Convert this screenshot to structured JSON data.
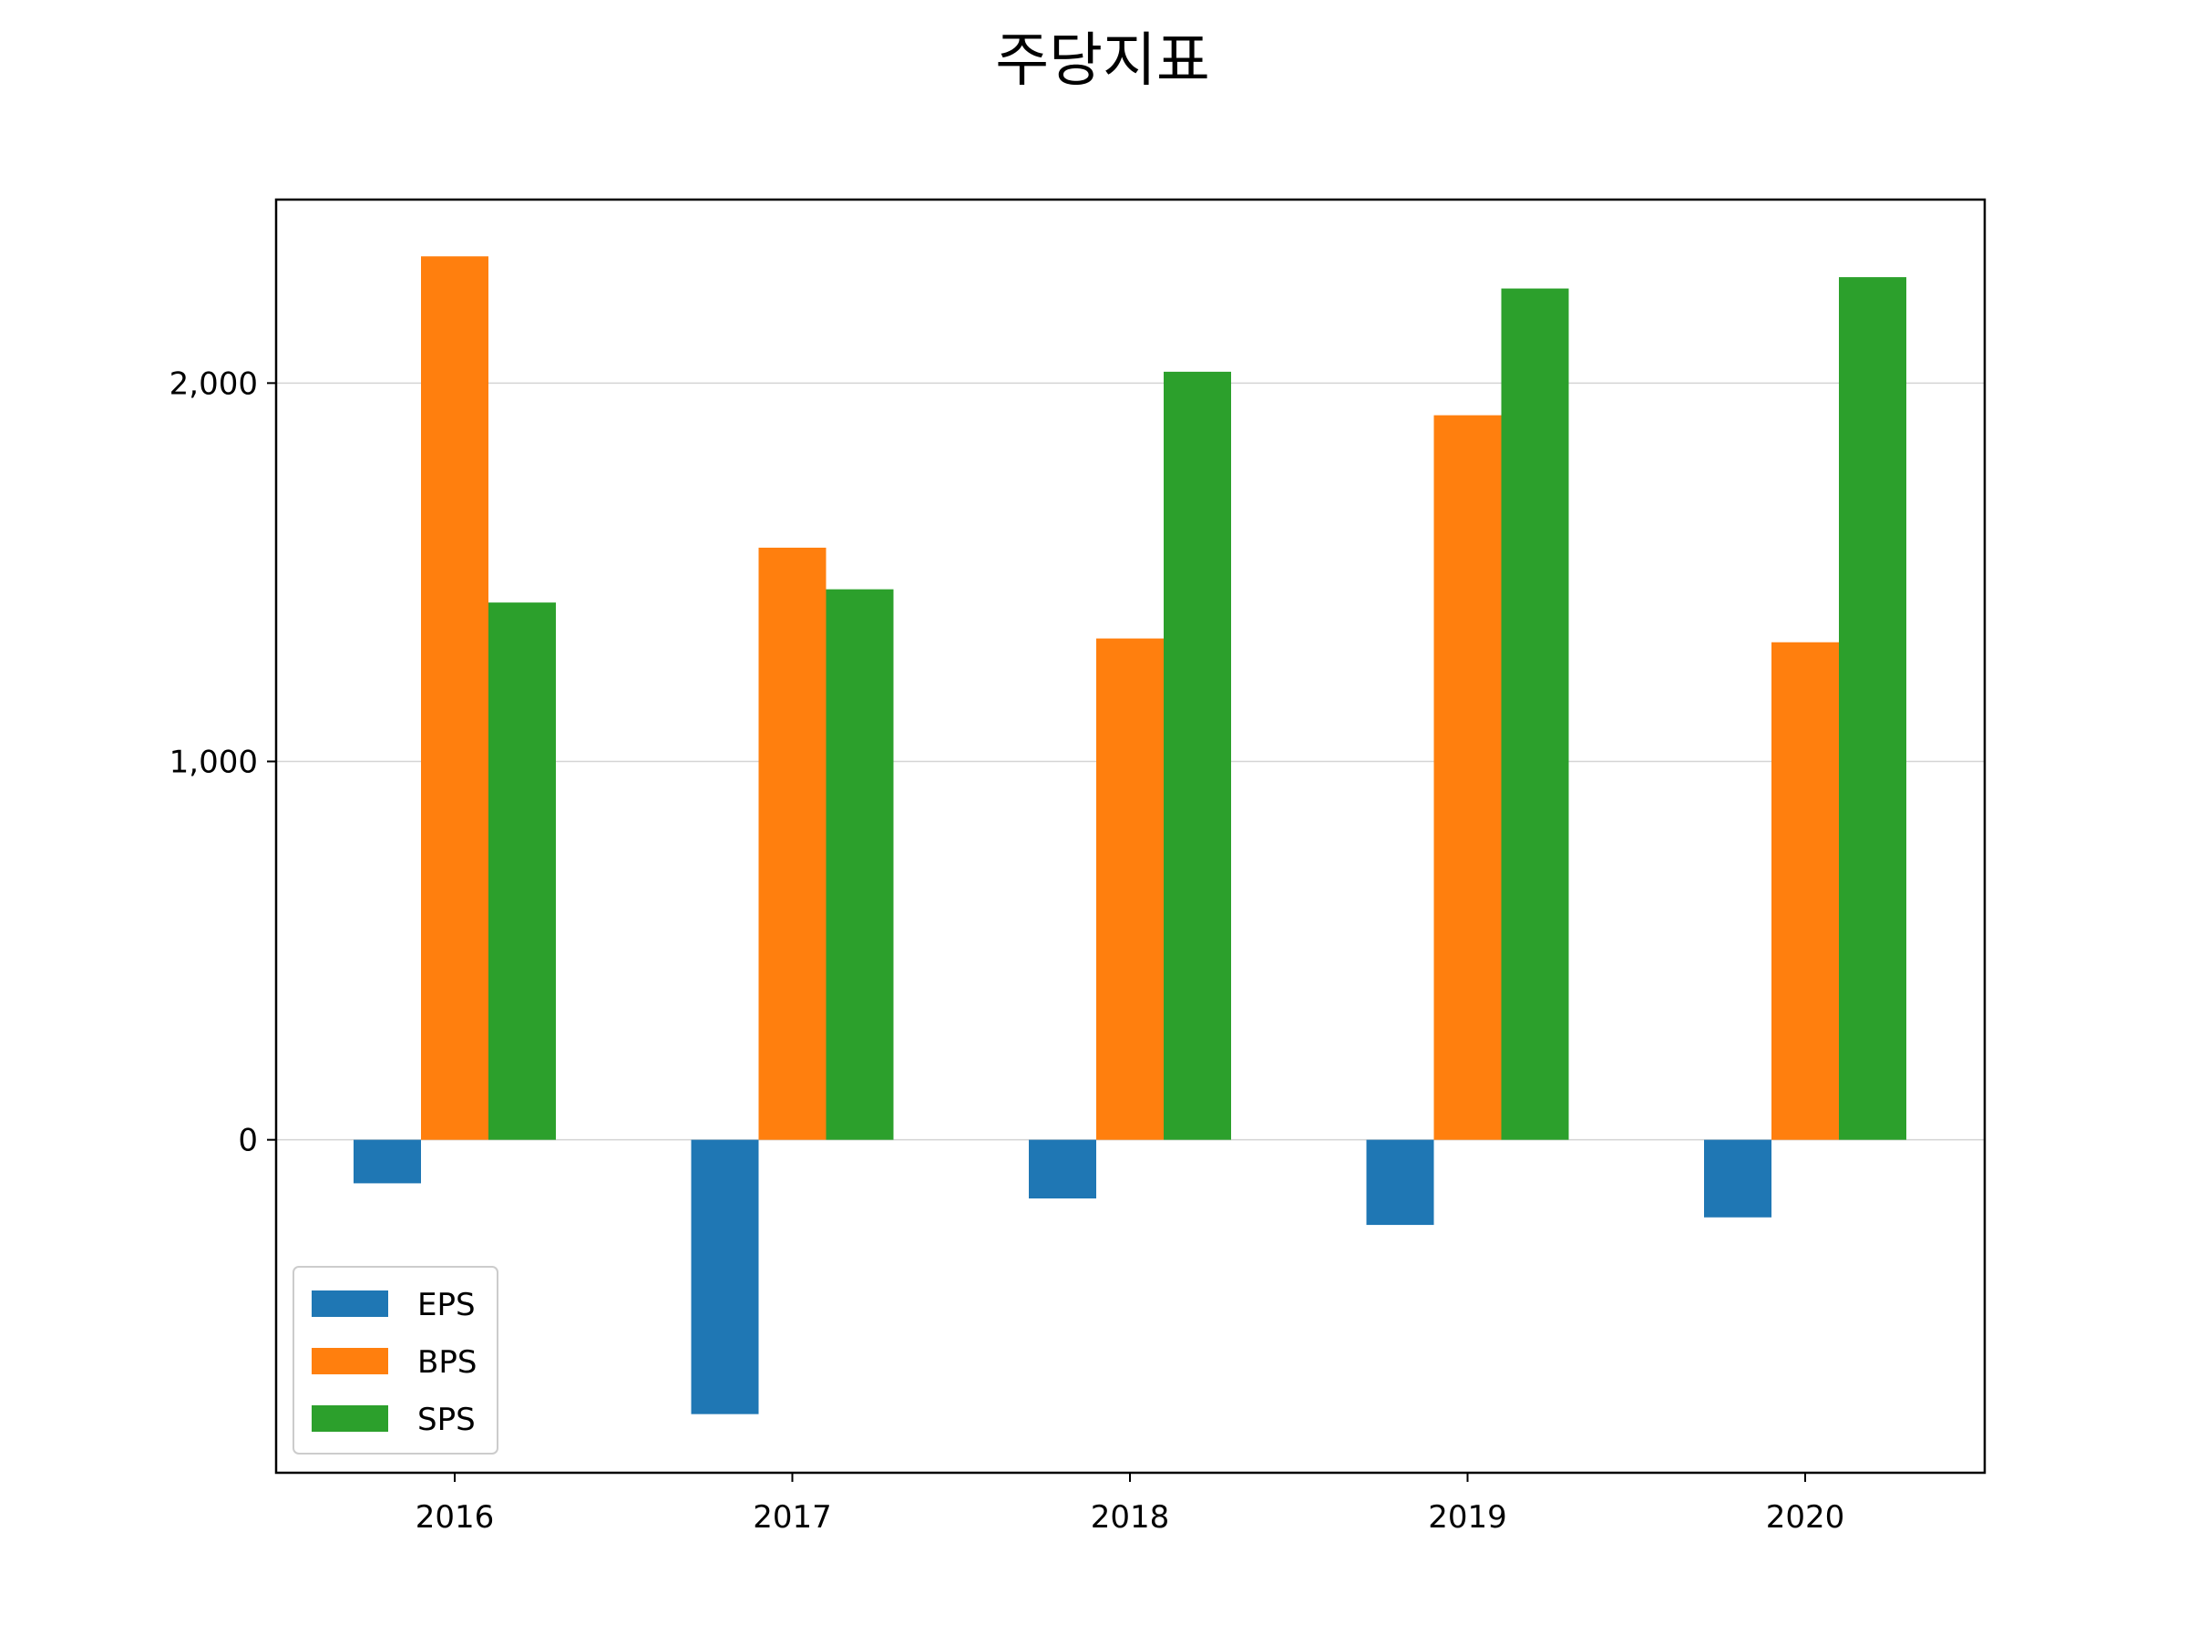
{
  "chart_data": {
    "type": "bar",
    "title": "주당지표",
    "xlabel": "",
    "ylabel": "",
    "categories": [
      "2016",
      "2017",
      "2018",
      "2019",
      "2020"
    ],
    "series": [
      {
        "name": "EPS",
        "color": "#1f77b4",
        "values": [
          -115,
          -725,
          -155,
          -225,
          -205
        ]
      },
      {
        "name": "BPS",
        "color": "#ff7f0e",
        "values": [
          2335,
          1565,
          1325,
          1915,
          1315
        ]
      },
      {
        "name": "SPS",
        "color": "#2ca02c",
        "values": [
          1420,
          1455,
          2030,
          2250,
          2280
        ]
      }
    ],
    "ylim": [
      -880,
      2485
    ],
    "yticks": [
      0,
      1000,
      2000
    ],
    "ytick_labels": [
      "0",
      "1,000",
      "2,000"
    ],
    "grid": true,
    "legend_position": "lower-left"
  }
}
